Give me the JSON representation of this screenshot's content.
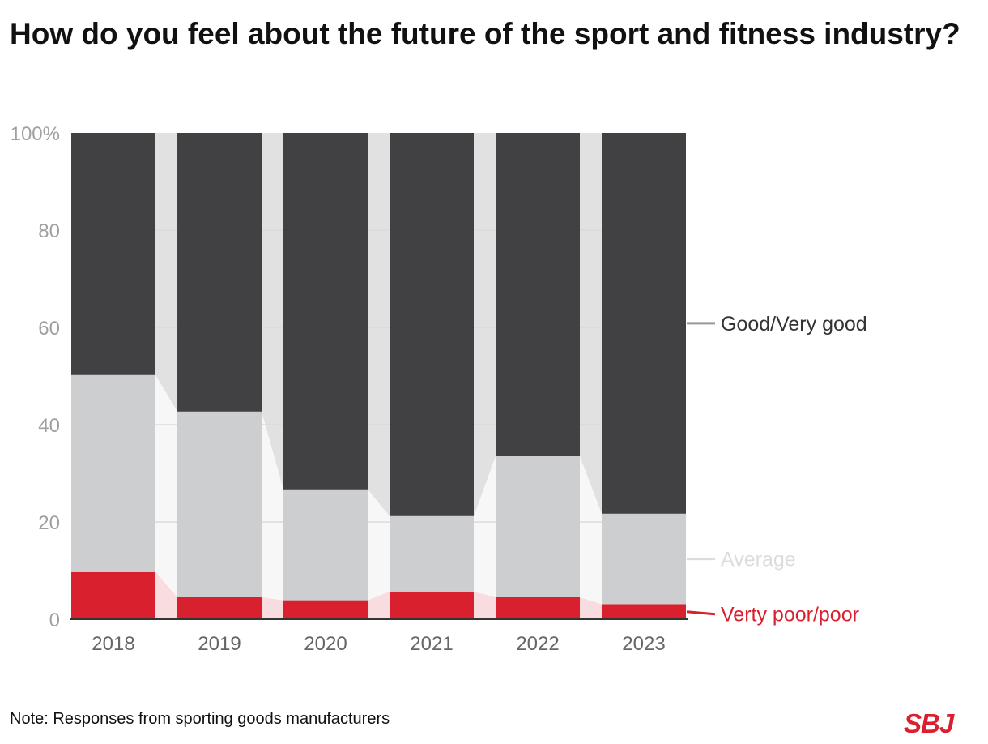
{
  "title": "How do you feel about the future of the sport and fitness industry?",
  "note": "Note: Responses from sporting goods manufacturers",
  "logo": "SBJ",
  "chart_data": {
    "type": "bar",
    "stacked": true,
    "title": "How do you feel about the future of the sport and fitness industry?",
    "categories": [
      "2018",
      "2019",
      "2020",
      "2021",
      "2022",
      "2023"
    ],
    "series": [
      {
        "name": "Verty poor/poor",
        "values": [
          9.7,
          4.5,
          3.9,
          5.7,
          4.5,
          3.1
        ],
        "color": "#d9202f",
        "link_color": "#f9dcdf",
        "label_color": "#d9202f"
      },
      {
        "name": "Average",
        "values": [
          40.5,
          38.2,
          22.8,
          15.5,
          29.0,
          18.6
        ],
        "color": "#cdced0",
        "link_color": "#f7f7f7",
        "label_color": "#dcdcdc"
      },
      {
        "name": "Good/Very good",
        "values": [
          49.8,
          57.3,
          73.3,
          78.8,
          66.5,
          78.3
        ],
        "color": "#414042",
        "link_color": "#e1e1e1",
        "label_color": "#414042"
      }
    ],
    "y_ticks": [
      "0",
      "20",
      "40",
      "60",
      "80",
      "100%"
    ],
    "ylim": [
      0,
      100
    ],
    "grid": true,
    "legend": "right, direct labels"
  }
}
